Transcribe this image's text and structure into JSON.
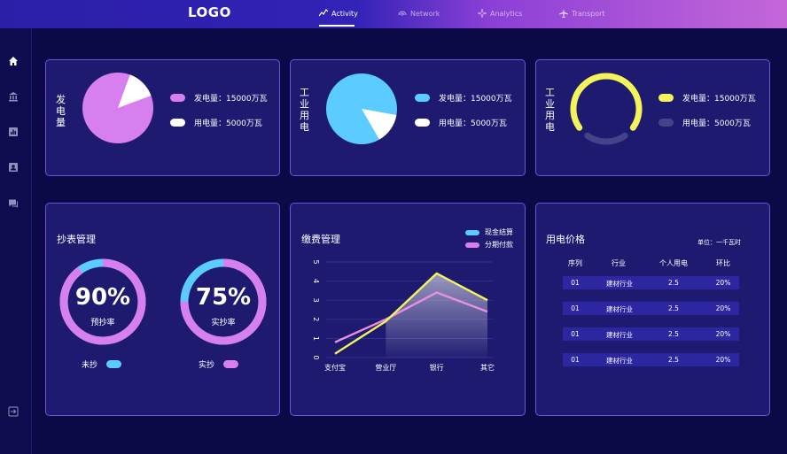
{
  "header": {
    "logo": "LOGO",
    "nav": [
      {
        "label": "Activity",
        "icon": "activity-icon",
        "active": true
      },
      {
        "label": "Network",
        "icon": "network-icon",
        "active": false
      },
      {
        "label": "Analytics",
        "icon": "analytics-icon",
        "active": false
      },
      {
        "label": "Transport",
        "icon": "transport-icon",
        "active": false
      }
    ]
  },
  "sidebar": {
    "items": [
      "home-icon",
      "bank-icon",
      "chart-icon",
      "contact-icon",
      "chat-icon"
    ],
    "bottom": "logout-icon"
  },
  "cards": {
    "generation": {
      "title": "发电量",
      "legend": [
        {
          "label": "发电量：15000万瓦",
          "color": "#d87ff0"
        },
        {
          "label": "用电量：5000万瓦",
          "color": "#ffffff"
        }
      ]
    },
    "industrial_pie": {
      "title": "工业用电",
      "legend": [
        {
          "label": "发电量：15000万瓦",
          "color": "#5ccbff"
        },
        {
          "label": "用电量：5000万瓦",
          "color": "#ffffff"
        }
      ]
    },
    "industrial_ring": {
      "title": "工业用电",
      "legend": [
        {
          "label": "发电量：15000万瓦",
          "color": "#f3f35a"
        },
        {
          "label": "用电量：5000万瓦",
          "color": "#44438a"
        }
      ]
    },
    "meter": {
      "title": "抄表管理",
      "gauges": [
        {
          "value": "90%",
          "label": "预抄率",
          "fraction": 0.9
        },
        {
          "value": "75%",
          "label": "实抄率",
          "fraction": 0.75
        }
      ],
      "legend": [
        {
          "label": "未抄",
          "color": "#5ccbff"
        },
        {
          "label": "实抄",
          "color": "#d87ff0"
        }
      ]
    },
    "payment": {
      "title": "缴费管理"
    },
    "price": {
      "title": "用电价格",
      "unit": "单位：一千瓦时",
      "columns": [
        "序列",
        "行业",
        "个人用电",
        "环比"
      ],
      "rows": [
        [
          "01",
          "建材行业",
          "2.5",
          "20%"
        ],
        [
          "01",
          "建材行业",
          "2.5",
          "20%"
        ],
        [
          "01",
          "建材行业",
          "2.5",
          "20%"
        ],
        [
          "01",
          "建材行业",
          "2.5",
          "20%"
        ]
      ]
    }
  },
  "chart_data": [
    {
      "type": "pie",
      "labels": [
        "发电量",
        "用电量"
      ],
      "values": [
        15000,
        5000
      ],
      "colors": [
        "#d87ff0",
        "#ffffff"
      ]
    },
    {
      "type": "pie",
      "labels": [
        "发电量",
        "用电量"
      ],
      "values": [
        15000,
        5000
      ],
      "colors": [
        "#5ccbff",
        "#ffffff"
      ]
    },
    {
      "type": "pie",
      "labels": [
        "发电量",
        "用电量"
      ],
      "values": [
        15000,
        5000
      ],
      "colors": [
        "#f3f35a",
        "#44438a"
      ]
    },
    {
      "type": "line",
      "categories": [
        "支付宝",
        "营业厅",
        "银行",
        "其它"
      ],
      "ylim": [
        0,
        5
      ],
      "yticks": [
        "0",
        "1",
        "2",
        "3",
        "4",
        "5"
      ],
      "legend_position": "top-right",
      "series": [
        {
          "name": "现金结算",
          "color": "#f3f35a",
          "values": [
            0.2,
            1.9,
            4.4,
            3.0
          ]
        },
        {
          "name": "分期付款",
          "color": "#e88fe0",
          "values": [
            0.8,
            2.0,
            3.4,
            2.4
          ]
        }
      ]
    }
  ]
}
